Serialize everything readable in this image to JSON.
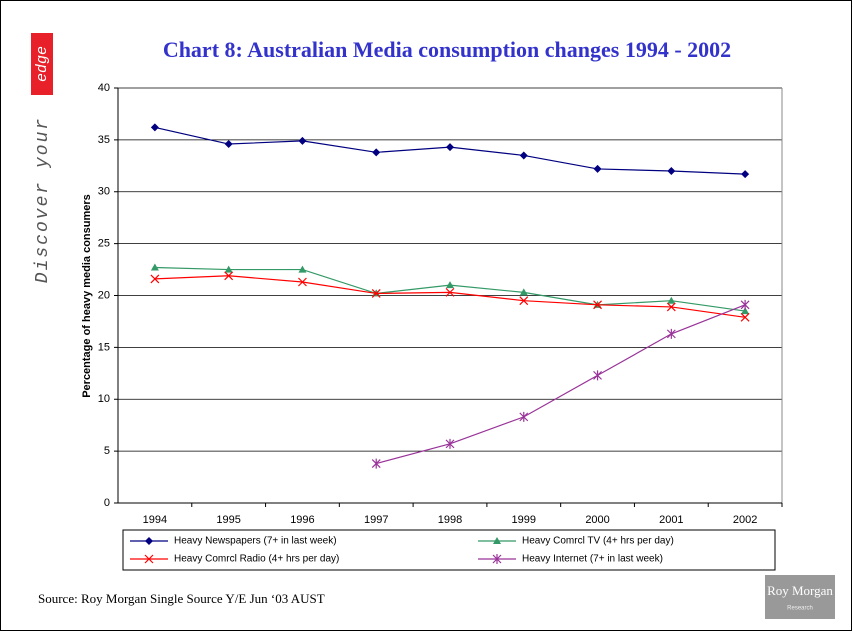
{
  "chart_data": {
    "type": "line",
    "title": "Chart 8: Australian Media consumption changes 1994 - 2002",
    "y_label": "Percentage of heavy media consumers",
    "categories": [
      "1994",
      "1995",
      "1996",
      "1997",
      "1998",
      "1999",
      "2000",
      "2001",
      "2002"
    ],
    "series": [
      {
        "name": "Heavy Newspapers (7+ in last week)",
        "color": "#000080",
        "marker": "diamond",
        "values": [
          36.2,
          34.6,
          34.9,
          33.8,
          34.3,
          33.5,
          32.2,
          32.0,
          31.7
        ]
      },
      {
        "name": "Heavy Comrcl TV (4+ hrs per day)",
        "color": "#339966",
        "marker": "triangle",
        "values": [
          22.7,
          22.5,
          22.5,
          20.2,
          21.0,
          20.3,
          19.1,
          19.5,
          18.5
        ]
      },
      {
        "name": "Heavy Comrcl Radio (4+ hrs per day)",
        "color": "#ff0000",
        "marker": "x",
        "values": [
          21.6,
          21.9,
          21.3,
          20.2,
          20.3,
          19.5,
          19.1,
          18.9,
          17.9
        ]
      },
      {
        "name": "Heavy Internet (7+ in last week)",
        "color": "#993399",
        "marker": "asterisk",
        "values": [
          null,
          null,
          null,
          3.8,
          5.7,
          8.3,
          12.3,
          16.3,
          19.1
        ]
      }
    ],
    "ylim": [
      0,
      40
    ],
    "yticks": [
      0,
      5,
      10,
      15,
      20,
      25,
      30,
      35,
      40
    ],
    "grid": true,
    "legend": "bottom",
    "source": "Source: Roy Morgan Single Source Y/E Jun ‘03  AUST"
  },
  "branding": {
    "tagline": "Discover your",
    "tagline_highlight": "edge",
    "logo": "Roy Morgan",
    "logo_sub": "Research"
  }
}
